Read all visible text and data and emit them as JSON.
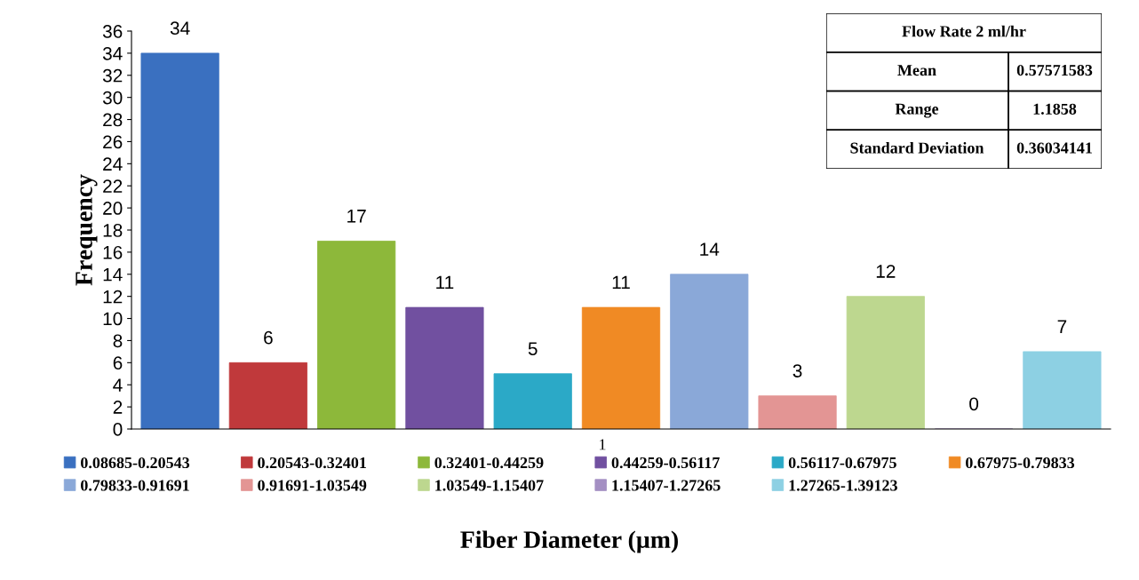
{
  "chart_data": {
    "type": "bar",
    "xlabel": "Fiber Diameter (µm)",
    "ylabel": "Frequency",
    "categories": [
      null,
      null,
      null,
      null,
      null,
      null,
      null,
      null,
      null,
      null,
      null
    ],
    "series": [
      {
        "name": "0.08685-0.20543",
        "color": "#3a70c0",
        "values": [
          34,
          null,
          null,
          null,
          null,
          null,
          null,
          null,
          null,
          null,
          null
        ]
      },
      {
        "name": "0.20543-0.32401",
        "color": "#c0393b",
        "values": [
          null,
          6,
          null,
          null,
          null,
          null,
          null,
          null,
          null,
          null,
          null
        ]
      },
      {
        "name": "0.32401-0.44259",
        "color": "#8db83a",
        "values": [
          null,
          null,
          17,
          null,
          null,
          null,
          null,
          null,
          null,
          null,
          null
        ]
      },
      {
        "name": "0.44259-0.56117",
        "color": "#7150a0",
        "values": [
          null,
          null,
          null,
          11,
          null,
          null,
          null,
          null,
          null,
          null,
          null
        ]
      },
      {
        "name": "0.56117-0.67975",
        "color": "#2ba9c7",
        "values": [
          null,
          null,
          null,
          null,
          5,
          null,
          null,
          null,
          null,
          null,
          null
        ]
      },
      {
        "name": "0.67975-0.79833",
        "color": "#f08a24",
        "values": [
          null,
          null,
          null,
          null,
          null,
          11,
          null,
          null,
          null,
          null,
          null
        ]
      },
      {
        "name": "0.79833-0.91691",
        "color": "#8aa8d8",
        "values": [
          null,
          null,
          null,
          null,
          null,
          null,
          14,
          null,
          null,
          null,
          null
        ]
      },
      {
        "name": "0.91691-1.03549",
        "color": "#e39594",
        "values": [
          null,
          null,
          null,
          null,
          null,
          null,
          null,
          3,
          null,
          null,
          null
        ]
      },
      {
        "name": "1.03549-1.15407",
        "color": "#bdd78f",
        "values": [
          null,
          null,
          null,
          null,
          null,
          null,
          null,
          null,
          12,
          null,
          null
        ]
      },
      {
        "name": "1.15407-1.27265",
        "color": "#a48fc3",
        "values": [
          null,
          null,
          null,
          null,
          null,
          null,
          null,
          null,
          null,
          0,
          null
        ]
      },
      {
        "name": "1.27265-1.39123",
        "color": "#8dd0e3",
        "values": [
          null,
          null,
          null,
          null,
          null,
          null,
          null,
          null,
          null,
          null,
          7
        ]
      }
    ],
    "ylim": [
      0,
      36
    ],
    "yticks": [
      0,
      2,
      4,
      6,
      8,
      10,
      12,
      14,
      16,
      18,
      20,
      22,
      24,
      26,
      28,
      30,
      32,
      34,
      36
    ],
    "data_labels": true,
    "legend": "bottom",
    "annotations": [
      "Flow Rate 2 ml/hr",
      "Mean",
      "0.57571583",
      "Range",
      "1.1858",
      "Standard Deviation",
      "0.36034141",
      "1"
    ]
  }
}
